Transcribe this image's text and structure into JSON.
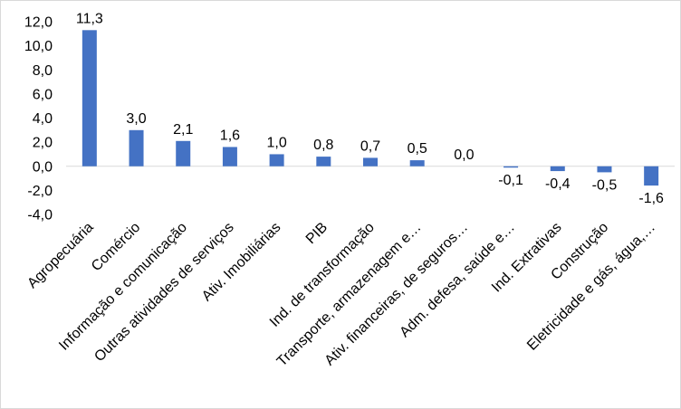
{
  "chart_data": {
    "type": "bar",
    "categories": [
      "Agropecuária",
      "Comércio",
      "Informação e comunicação",
      "Outras atividades de serviços",
      "Ativ. Imobiliárias",
      "PIB",
      "Ind. de transformação",
      "Transporte, armazenagem e…",
      "Ativ. financeiras, de seguros…",
      "Adm. defesa, saúde e…",
      "Ind. Extrativas",
      "Construção",
      "Eletricidade e gás, água,…"
    ],
    "values": [
      11.3,
      3.0,
      2.1,
      1.6,
      1.0,
      0.8,
      0.7,
      0.5,
      0.0,
      -0.1,
      -0.4,
      -0.5,
      -1.6
    ],
    "value_labels": [
      "11,3",
      "3,0",
      "2,1",
      "1,6",
      "1,0",
      "0,8",
      "0,7",
      "0,5",
      "0,0",
      "-0,1",
      "-0,4",
      "-0,5",
      "-1,6"
    ],
    "yticks": [
      12,
      10,
      8,
      6,
      4,
      2,
      0,
      -2,
      -4
    ],
    "ytick_labels": [
      "12,0",
      "10,0",
      "8,0",
      "6,0",
      "4,0",
      "2,0",
      "0,0",
      "-2,0",
      "-4,0"
    ],
    "ylim": [
      -4,
      12
    ],
    "grid": false,
    "legend": "none",
    "bar_color": "#4472c4",
    "axis_color": "#d9d9d9"
  }
}
